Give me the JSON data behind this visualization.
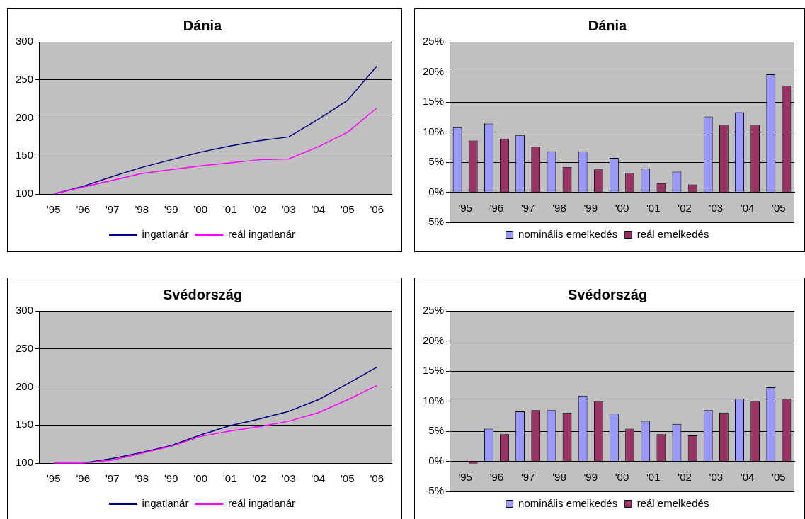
{
  "chart_data": [
    {
      "type": "line",
      "title": "Dánia",
      "categories": [
        "'95",
        "'96",
        "'97",
        "'98",
        "'99",
        "'00",
        "'01",
        "'02",
        "'03",
        "'04",
        "'05",
        "'06"
      ],
      "series": [
        {
          "name": "ingatlanár",
          "color": "#000080",
          "values": [
            100,
            110,
            123,
            135,
            145,
            155,
            163,
            170,
            175,
            198,
            223,
            268
          ]
        },
        {
          "name": "reál ingatlanár",
          "color": "#ff00ff",
          "values": [
            100,
            109,
            118,
            127,
            132,
            137,
            141,
            145,
            146,
            162,
            181,
            213
          ]
        }
      ],
      "ylim": [
        100,
        300
      ],
      "yticks": [
        100,
        150,
        200,
        250,
        300
      ],
      "grid": "y",
      "legend": "bottom",
      "marker": "none"
    },
    {
      "type": "bar",
      "title": "Dánia",
      "categories": [
        "'95",
        "'96",
        "'97",
        "'98",
        "'99",
        "'00",
        "'01",
        "'02",
        "'03",
        "'04",
        "'05"
      ],
      "series": [
        {
          "name": "nominális emelkedés",
          "color": "#9999ff",
          "values": [
            10.8,
            11.4,
            9.5,
            6.8,
            6.8,
            5.7,
            3.9,
            3.4,
            12.6,
            13.3,
            19.6
          ]
        },
        {
          "name": "reál emelkedés",
          "color": "#993366",
          "values": [
            8.6,
            8.9,
            7.6,
            4.2,
            3.8,
            3.2,
            1.5,
            1.3,
            11.2,
            11.2,
            17.7
          ]
        }
      ],
      "ylim": [
        -5,
        25
      ],
      "yticks": [
        {
          "value": -5,
          "label": "-5%"
        },
        {
          "value": 0,
          "label": "0%"
        },
        {
          "value": 5,
          "label": "5%"
        },
        {
          "value": 10,
          "label": "10%"
        },
        {
          "value": 15,
          "label": "15%"
        },
        {
          "value": 20,
          "label": "20%"
        },
        {
          "value": 25,
          "label": "25%"
        }
      ],
      "grid": "y",
      "legend": "bottom"
    },
    {
      "type": "line",
      "title": "Svédország",
      "categories": [
        "'95",
        "'96",
        "'97",
        "'98",
        "'99",
        "'00",
        "'01",
        "'02",
        "'03",
        "'04",
        "'05",
        "'06"
      ],
      "series": [
        {
          "name": "ingatlanár",
          "color": "#000080",
          "values": [
            null,
            100,
            106,
            114,
            123,
            137,
            149,
            158,
            168,
            183,
            204,
            226
          ]
        },
        {
          "name": "reál ingatlanár",
          "color": "#ff00ff",
          "values": [
            100,
            100,
            104,
            113,
            122,
            135,
            142,
            148,
            155,
            166,
            183,
            202
          ]
        }
      ],
      "ylim": [
        100,
        300
      ],
      "yticks": [
        100,
        150,
        200,
        250,
        300
      ],
      "grid": "y",
      "legend": "bottom",
      "marker": "none"
    },
    {
      "type": "bar",
      "title": "Svédország",
      "categories": [
        "'95",
        "'96",
        "'97",
        "'98",
        "'99",
        "'00",
        "'01",
        "'02",
        "'03",
        "'04",
        "'05"
      ],
      "series": [
        {
          "name": "nominális emelkedés",
          "color": "#9999ff",
          "values": [
            null,
            5.4,
            8.3,
            8.5,
            10.9,
            7.9,
            6.7,
            6.2,
            8.5,
            10.4,
            12.3
          ]
        },
        {
          "name": "reál emelkedés",
          "color": "#993366",
          "values": [
            -0.5,
            4.5,
            8.5,
            8.1,
            10.0,
            5.4,
            4.5,
            4.3,
            8.1,
            10.0,
            10.4
          ]
        }
      ],
      "ylim": [
        -5,
        25
      ],
      "yticks": [
        {
          "value": -5,
          "label": "-5%"
        },
        {
          "value": 0,
          "label": "0%"
        },
        {
          "value": 5,
          "label": "5%"
        },
        {
          "value": 10,
          "label": "10%"
        },
        {
          "value": 15,
          "label": "15%"
        },
        {
          "value": 20,
          "label": "20%"
        },
        {
          "value": 25,
          "label": "25%"
        }
      ],
      "grid": "y",
      "legend": "bottom"
    }
  ]
}
